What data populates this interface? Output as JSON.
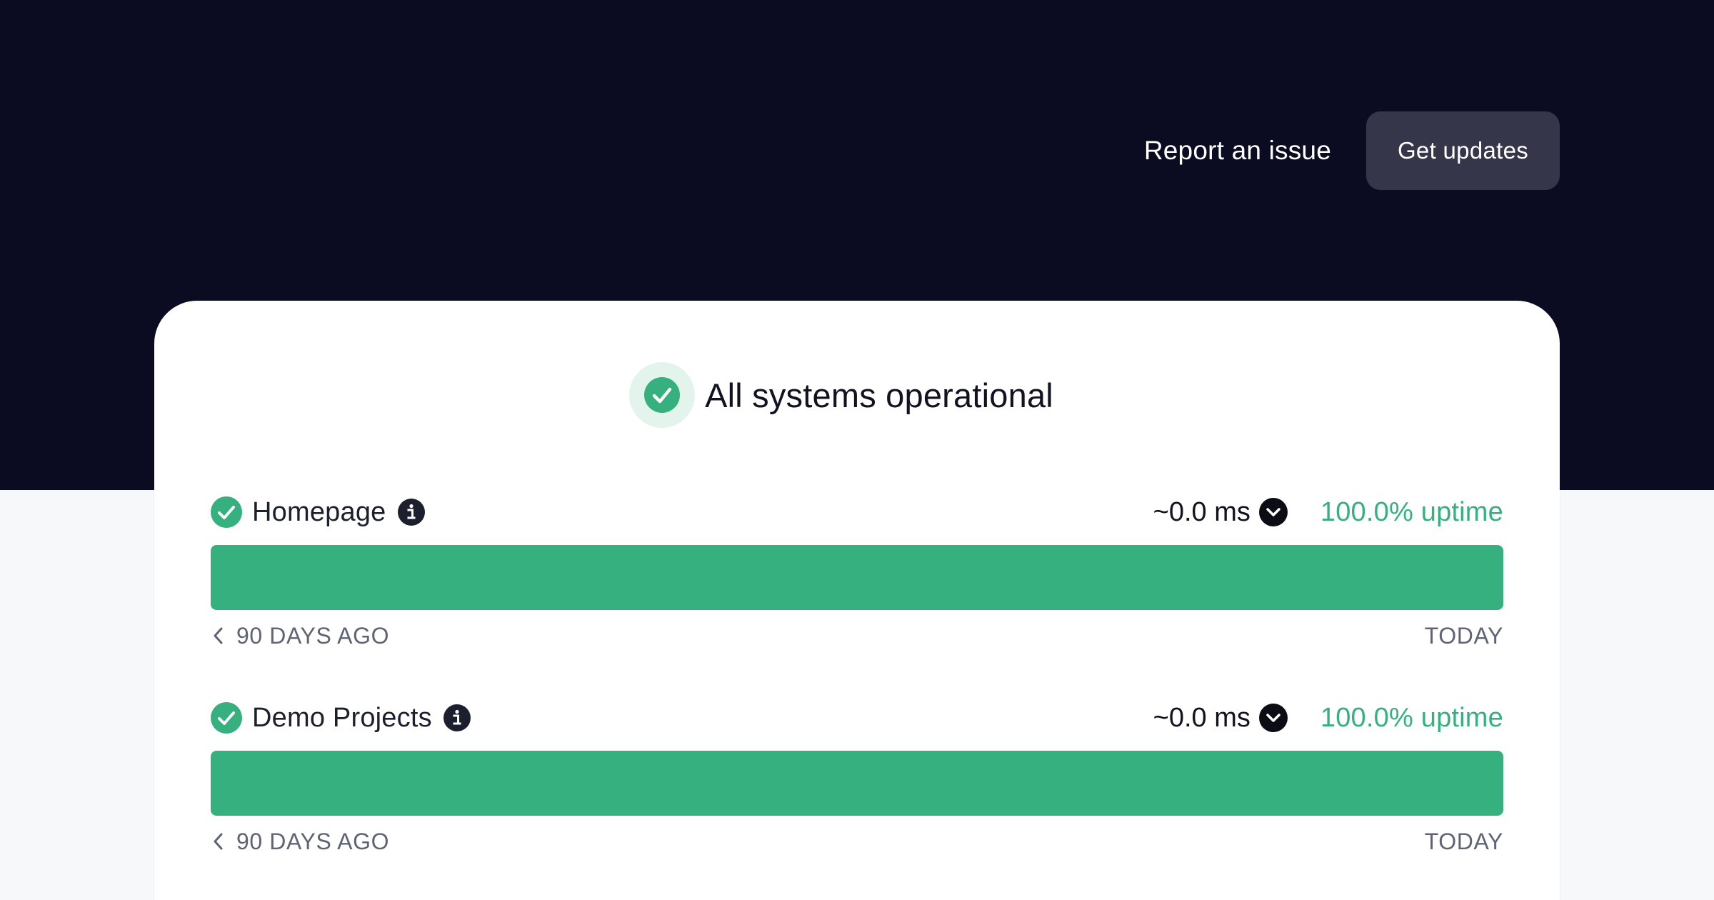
{
  "header": {
    "report_label": "Report an issue",
    "updates_label": "Get updates"
  },
  "overall": {
    "status": "All systems operational",
    "icon": "check-circle-icon"
  },
  "monitors": [
    {
      "name": "Homepage",
      "latency": "~0.0 ms",
      "uptime": "100.0% uptime",
      "uptime_fraction": 1.0,
      "range_start": "90 DAYS AGO",
      "range_end": "TODAY"
    },
    {
      "name": "Demo Projects",
      "latency": "~0.0 ms",
      "uptime": "100.0% uptime",
      "uptime_fraction": 1.0,
      "range_start": "90 DAYS AGO",
      "range_end": "TODAY"
    }
  ],
  "colors": {
    "hero_bg": "#0b0c22",
    "accent_green": "#36b07e",
    "button_bg": "#35364a"
  }
}
